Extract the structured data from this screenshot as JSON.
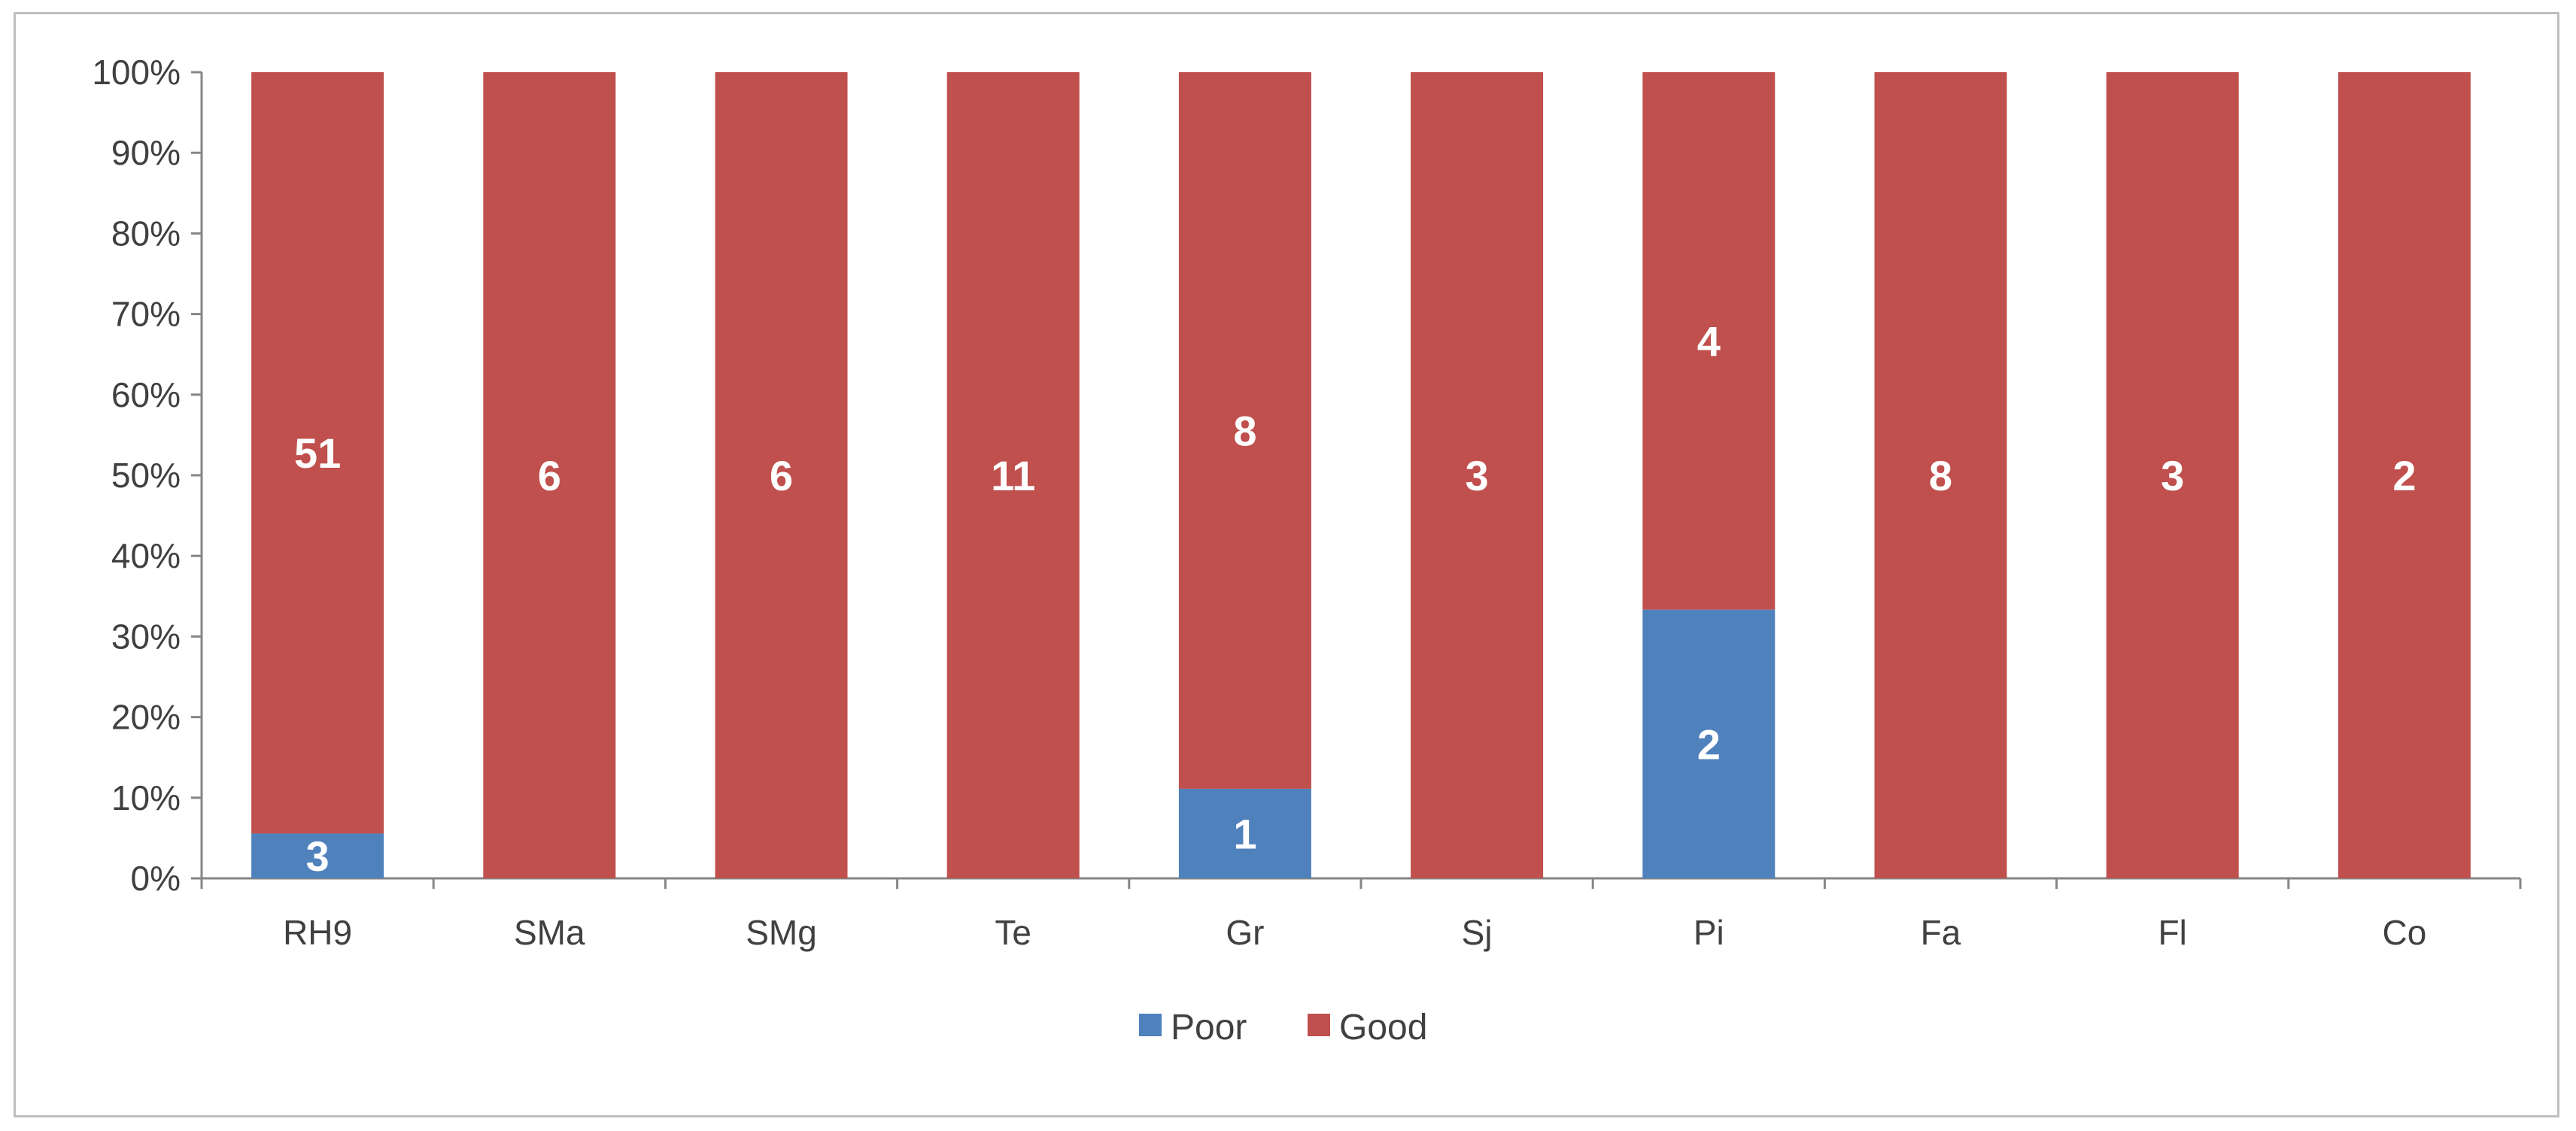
{
  "chart_data": {
    "type": "bar",
    "stacked": true,
    "percent_stacked": true,
    "categories": [
      "RH9",
      "SMa",
      "SMg",
      "Te",
      "Gr",
      "Sj",
      "Pi",
      "Fa",
      "Fl",
      "Co"
    ],
    "series": [
      {
        "name": "Poor",
        "color": "#4f81bd",
        "values": [
          3,
          0,
          0,
          0,
          1,
          0,
          2,
          0,
          0,
          0
        ]
      },
      {
        "name": "Good",
        "color": "#c0504d",
        "values": [
          51,
          6,
          6,
          11,
          8,
          3,
          4,
          8,
          3,
          2
        ]
      }
    ],
    "y_ticks": [
      "0%",
      "10%",
      "20%",
      "30%",
      "40%",
      "50%",
      "60%",
      "70%",
      "80%",
      "90%",
      "100%"
    ],
    "ylim": [
      0,
      100
    ],
    "grid": false,
    "legend": "bottom-center",
    "title": "",
    "xlabel": "",
    "ylabel": ""
  }
}
